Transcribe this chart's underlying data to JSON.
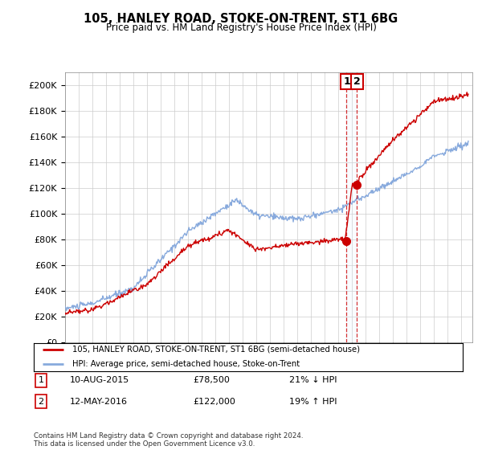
{
  "title": "105, HANLEY ROAD, STOKE-ON-TRENT, ST1 6BG",
  "subtitle": "Price paid vs. HM Land Registry's House Price Index (HPI)",
  "ylabel_ticks": [
    "£0",
    "£20K",
    "£40K",
    "£60K",
    "£80K",
    "£100K",
    "£120K",
    "£140K",
    "£160K",
    "£180K",
    "£200K"
  ],
  "ytick_vals": [
    0,
    20000,
    40000,
    60000,
    80000,
    100000,
    120000,
    140000,
    160000,
    180000,
    200000
  ],
  "ylim": [
    0,
    210000
  ],
  "x_start_year": 1995,
  "x_end_year": 2024,
  "sale1_date": 2015.6,
  "sale1_price": 78500,
  "sale1_hpi": 100000,
  "sale1_label": "10-AUG-2015",
  "sale1_pct": "21% ↓ HPI",
  "sale2_date": 2016.36,
  "sale2_price": 122000,
  "sale2_hpi": 103000,
  "sale2_label": "12-MAY-2016",
  "sale2_pct": "19% ↑ HPI",
  "hpi_color": "#88aadd",
  "price_color": "#cc0000",
  "dashed_color": "#cc0000",
  "shade_color": "#ddeeff",
  "legend_line1": "105, HANLEY ROAD, STOKE-ON-TRENT, ST1 6BG (semi-detached house)",
  "legend_line2": "HPI: Average price, semi-detached house, Stoke-on-Trent",
  "footer": "Contains HM Land Registry data © Crown copyright and database right 2024.\nThis data is licensed under the Open Government Licence v3.0.",
  "background_color": "#ffffff",
  "grid_color": "#cccccc"
}
